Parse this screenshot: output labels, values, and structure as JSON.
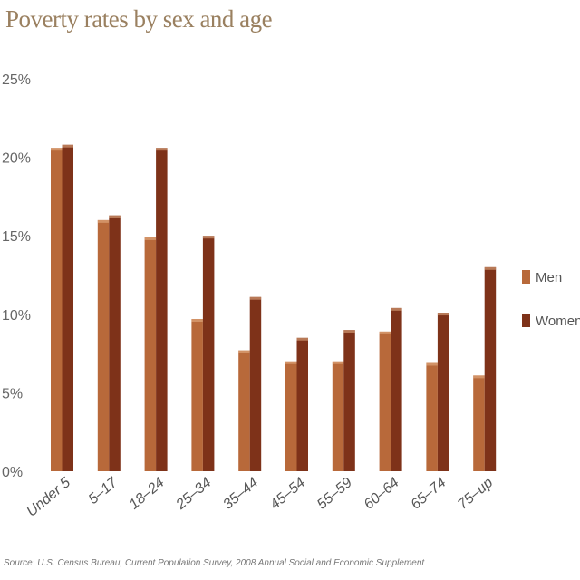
{
  "chart_data": {
    "type": "bar",
    "title": "Poverty rates by sex and age",
    "categories": [
      "Under 5",
      "5–17",
      "18–24",
      "25–34",
      "35–44",
      "45–54",
      "55–59",
      "60–64",
      "65–74",
      "75–up"
    ],
    "series": [
      {
        "name": "Men",
        "values": [
          20.6,
          16.0,
          14.9,
          9.7,
          7.7,
          7.0,
          7.0,
          8.9,
          6.9,
          6.1
        ],
        "color": "#b8693a"
      },
      {
        "name": "Women",
        "values": [
          20.8,
          16.3,
          20.6,
          15.0,
          11.1,
          8.5,
          9.0,
          10.4,
          10.1,
          13.0
        ],
        "color": "#7e3219"
      }
    ],
    "yticks": [
      "0%",
      "5%",
      "10%",
      "15%",
      "20%",
      "25%"
    ],
    "ylim": [
      0,
      25
    ],
    "legend_position": "right",
    "grid": false
  },
  "source": "Source: U.S. Census Bureau, Current Population Survey, 2008 Annual Social and Economic Supplement"
}
